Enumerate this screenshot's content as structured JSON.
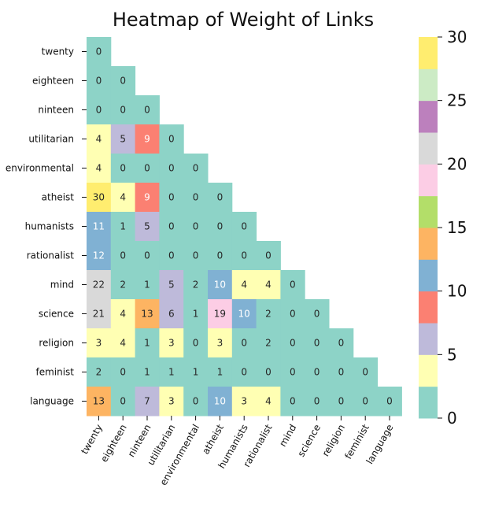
{
  "chart_data": {
    "type": "heatmap",
    "title": "Heatmap of Weight of Links",
    "xlabel": "",
    "ylabel": "",
    "labels": [
      "twenty",
      "eighteen",
      "ninteen",
      "utilitarian",
      "environmental",
      "atheist",
      "humanists",
      "rationalist",
      "mind",
      "science",
      "religion",
      "feminist",
      "language"
    ],
    "matrix": [
      [
        0
      ],
      [
        0,
        0
      ],
      [
        0,
        0,
        0
      ],
      [
        4,
        5,
        9,
        0
      ],
      [
        4,
        0,
        0,
        0,
        0
      ],
      [
        30,
        4,
        9,
        0,
        0,
        0
      ],
      [
        11,
        1,
        5,
        0,
        0,
        0,
        0
      ],
      [
        12,
        0,
        0,
        0,
        0,
        0,
        0,
        0
      ],
      [
        22,
        2,
        1,
        5,
        2,
        10,
        4,
        4,
        0
      ],
      [
        21,
        4,
        13,
        6,
        1,
        19,
        10,
        2,
        0,
        0
      ],
      [
        3,
        4,
        1,
        3,
        0,
        3,
        0,
        2,
        0,
        0,
        0
      ],
      [
        2,
        0,
        1,
        1,
        1,
        1,
        0,
        0,
        0,
        0,
        0,
        0
      ],
      [
        13,
        0,
        7,
        3,
        0,
        10,
        3,
        4,
        0,
        0,
        0,
        0,
        0
      ]
    ],
    "colorbar": {
      "range": [
        0,
        30
      ],
      "ticks": [
        "0",
        "5",
        "10",
        "15",
        "20",
        "25",
        "30"
      ],
      "palette": [
        "#8dd3c7",
        "#ffffb3",
        "#bebada",
        "#fb8072",
        "#80b1d3",
        "#fdb462",
        "#b3de69",
        "#fccde5",
        "#d9d9d9",
        "#bc80bd",
        "#ccebc5",
        "#ffed6f"
      ]
    },
    "mask": "upper-triangle"
  }
}
